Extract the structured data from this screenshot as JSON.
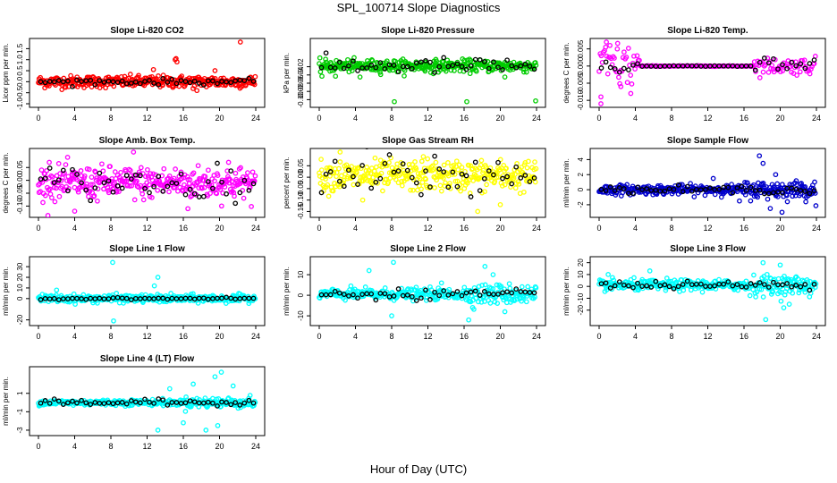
{
  "page": {
    "title": "SPL_100714  Slope Diagnostics",
    "xlabel": "Hour of Day (UTC)"
  },
  "chart_data": [
    {
      "type": "scatter",
      "title": "Slope Li-820 CO2",
      "ylabel": "Licor ppm per min.",
      "color": "#ff0000",
      "xlim": [
        0,
        24
      ],
      "ylim": [
        -1.0,
        1.8
      ],
      "yticks": [
        -1.0,
        -0.5,
        0.0,
        0.5,
        1.0,
        1.5
      ],
      "yticklabels": [
        "-1.0",
        "-0.5",
        "0.0",
        "0.5",
        "1.0",
        "1.5"
      ],
      "band": {
        "center": 0.0,
        "spread": 0.3
      },
      "outliers": [
        [
          15.2,
          1.05
        ],
        [
          15.1,
          1.0
        ],
        [
          15.3,
          0.9
        ],
        [
          22.3,
          1.8
        ],
        [
          17.5,
          -0.4
        ],
        [
          12.7,
          0.55
        ],
        [
          19.5,
          0.5
        ]
      ],
      "mean_center": 0.0,
      "mean_spread": 0.08
    },
    {
      "type": "scatter",
      "title": "Slope Li-820 Pressure",
      "ylabel": "kPa per min.",
      "color": "#00cc00",
      "xlim": [
        0,
        24
      ],
      "ylim": [
        -0.11,
        0.04
      ],
      "yticks": [
        -0.1,
        -0.08,
        -0.06,
        -0.04,
        -0.02
      ],
      "yticklabels": [
        "-0.10",
        "-0.08",
        "-0.06",
        "-0.04",
        "-0.02"
      ],
      "band": {
        "center": -0.018,
        "spread": 0.016
      },
      "outliers": [
        [
          8.3,
          -0.105
        ],
        [
          16.3,
          -0.105
        ],
        [
          23.9,
          -0.103
        ],
        [
          4.5,
          -0.045
        ],
        [
          0.3,
          -0.043
        ],
        [
          1.8,
          -0.043
        ],
        [
          20.5,
          -0.045
        ]
      ],
      "mean_center": -0.018,
      "mean_spread": 0.012
    },
    {
      "type": "scatter",
      "title": "Slope Li-820 Temp.",
      "ylabel": "degrees C per min.",
      "color": "#ff00ff",
      "xlim": [
        0,
        24
      ],
      "ylim": [
        -0.011,
        0.007
      ],
      "yticks": [
        -0.01,
        -0.005,
        0.0,
        0.005
      ],
      "yticklabels": [
        "-0.010",
        "-0.005",
        "0.000",
        "0.005"
      ],
      "band": {
        "center": 0.0,
        "spread": 0.0
      },
      "outliers": [
        [
          0.2,
          -0.011
        ],
        [
          0.2,
          -0.009
        ],
        [
          0.8,
          0.007
        ],
        [
          1.2,
          0.006
        ],
        [
          2.0,
          0.005
        ],
        [
          3.5,
          -0.008
        ],
        [
          4.2,
          0.003
        ],
        [
          2.4,
          -0.006
        ]
      ],
      "mean_center": 0.0,
      "mean_spread": 0.001
    },
    {
      "type": "scatter",
      "title": "Slope Amb. Box Temp.",
      "ylabel": "degrees C per min.",
      "color": "#ff00ff",
      "xlim": [
        0,
        24
      ],
      "ylim": [
        -0.13,
        0.11
      ],
      "yticks": [
        -0.1,
        -0.05,
        0.0,
        0.05
      ],
      "yticklabels": [
        "-0.10",
        "-0.05",
        "0.00",
        "0.05"
      ],
      "band": {
        "center": -0.01,
        "spread": 0.07
      },
      "outliers": [
        [
          10.5,
          0.11
        ],
        [
          4.0,
          -0.12
        ],
        [
          1.2,
          0.07
        ],
        [
          21.0,
          0.07
        ],
        [
          16.5,
          -0.11
        ]
      ],
      "mean_center": -0.01,
      "mean_spread": 0.04
    },
    {
      "type": "scatter",
      "title": "Slope Gas Stream RH",
      "ylabel": "percent per min.",
      "color": "#ffff00",
      "xlim": [
        0,
        24
      ],
      "ylim": [
        -0.16,
        0.11
      ],
      "yticks": [
        -0.15,
        -0.1,
        -0.05,
        0.0,
        0.05
      ],
      "yticklabels": [
        "-0.15",
        "-0.10",
        "-0.05",
        "0.00",
        "0.05"
      ],
      "band": {
        "center": 0.005,
        "spread": 0.075
      },
      "outliers": [
        [
          2.3,
          0.11
        ],
        [
          4.8,
          -0.1
        ],
        [
          17.5,
          -0.15
        ],
        [
          20.0,
          -0.12
        ],
        [
          11.5,
          0.09
        ]
      ],
      "mean_center": 0.005,
      "mean_spread": 0.07
    },
    {
      "type": "scatter",
      "title": "Slope Sample Flow",
      "ylabel": "ml/min per min.",
      "color": "#0000cc",
      "xlim": [
        0,
        24
      ],
      "ylim": [
        -3.2,
        5.0
      ],
      "yticks": [
        -2,
        0,
        2,
        4
      ],
      "yticklabels": [
        "-2",
        "0",
        "2",
        "4"
      ],
      "band": {
        "center": 0.0,
        "spread": 0.7
      },
      "outliers": [
        [
          20.2,
          -3.0
        ],
        [
          18.1,
          3.5
        ],
        [
          18.9,
          -2.5
        ],
        [
          19.5,
          2.0
        ],
        [
          17.7,
          4.5
        ],
        [
          12.6,
          1.5
        ],
        [
          15.5,
          -1.5
        ]
      ],
      "mean_center": 0.0,
      "mean_spread": 0.3
    },
    {
      "type": "scatter",
      "title": "Slope Line 1 Flow",
      "ylabel": "ml/min per min.",
      "color": "#00ffff",
      "xlim": [
        0,
        24
      ],
      "ylim": [
        -22,
        36
      ],
      "yticks": [
        -20,
        0,
        10,
        20,
        30
      ],
      "yticklabels": [
        "-20",
        "0",
        "10",
        "20",
        "30"
      ],
      "band": {
        "center": 0.0,
        "spread": 4.0
      },
      "outliers": [
        [
          8.2,
          34
        ],
        [
          8.3,
          -21
        ],
        [
          13.2,
          20
        ],
        [
          12.8,
          12
        ],
        [
          2.0,
          8
        ]
      ],
      "mean_center": 0.0,
      "mean_spread": 0.5
    },
    {
      "type": "scatter",
      "title": "Slope Line 2 Flow",
      "ylabel": "ml/min per min.",
      "color": "#00ffff",
      "xlim": [
        0,
        24
      ],
      "ylim": [
        -13,
        17
      ],
      "yticks": [
        -10,
        0,
        10
      ],
      "yticklabels": [
        "-10",
        "0",
        "10"
      ],
      "band": {
        "center": 0.5,
        "spread": 3.0
      },
      "outliers": [
        [
          5.5,
          12
        ],
        [
          8.2,
          16
        ],
        [
          18.3,
          14
        ],
        [
          19.2,
          10
        ],
        [
          8.0,
          -10
        ],
        [
          16.5,
          -12
        ],
        [
          20.5,
          -8
        ],
        [
          13.5,
          6
        ]
      ],
      "mean_center": 0.5,
      "mean_spread": 1.5
    },
    {
      "type": "scatter",
      "title": "Slope Line 3 Flow",
      "ylabel": "ml/min per min.",
      "color": "#00ffff",
      "xlim": [
        0,
        24
      ],
      "ylim": [
        -30,
        22
      ],
      "yticks": [
        -20,
        -10,
        0,
        10,
        20
      ],
      "yticklabels": [
        "-20",
        "-10",
        "0",
        "10",
        "20"
      ],
      "band": {
        "center": 1.0,
        "spread": 5.0
      },
      "outliers": [
        [
          18.1,
          20
        ],
        [
          20.0,
          18
        ],
        [
          18.4,
          -28
        ],
        [
          20.4,
          -18
        ],
        [
          5.6,
          13
        ],
        [
          21.0,
          -15
        ],
        [
          1.0,
          10
        ]
      ],
      "mean_center": 1.0,
      "mean_spread": 2.0
    },
    {
      "type": "scatter",
      "title": "Slope Line 4 (LT) Flow",
      "ylabel": "ml/min per min.",
      "color": "#00ffff",
      "xlim": [
        0,
        24
      ],
      "ylim": [
        -3.2,
        3.5
      ],
      "yticks": [
        -3,
        -1,
        1
      ],
      "yticklabels": [
        "-3",
        "-1",
        "1"
      ],
      "band": {
        "center": 0.0,
        "spread": 0.35
      },
      "outliers": [
        [
          20.2,
          3.3
        ],
        [
          19.5,
          2.8
        ],
        [
          18.5,
          -3.0
        ],
        [
          19.8,
          -2.5
        ],
        [
          13.2,
          -3.0
        ],
        [
          17.1,
          2.0
        ],
        [
          14.5,
          1.5
        ],
        [
          21.5,
          1.8
        ],
        [
          16.0,
          -2.2
        ]
      ],
      "mean_center": 0.0,
      "mean_spread": 0.2
    }
  ],
  "xaxis": {
    "ticks": [
      0,
      4,
      8,
      12,
      16,
      20,
      24
    ],
    "ticklabels": [
      "0",
      "4",
      "8",
      "12",
      "16",
      "20",
      "24"
    ]
  }
}
